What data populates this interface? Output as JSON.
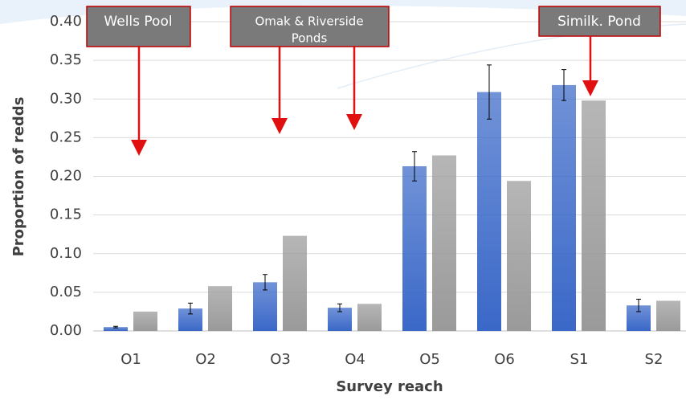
{
  "chart_data": {
    "type": "bar",
    "x_label": "Survey reach",
    "y_label": "Proportion of redds",
    "annotations": [
      "Wells Pool",
      "Omak & Riverside",
      "Ponds",
      "Similk. Pond"
    ],
    "categories": [
      "O1",
      "O2",
      "O3",
      "O4",
      "O5",
      "O6",
      "S1",
      "S2"
    ],
    "series": [
      {
        "color": "#3a68c8",
        "values": [
          0.005,
          0.029,
          0.063,
          0.03,
          0.213,
          0.309,
          0.318,
          0.033
        ],
        "errors": [
          0.001,
          0.007,
          0.01,
          0.005,
          0.019,
          0.035,
          0.02,
          0.008
        ]
      },
      {
        "color": "#9a9a9a",
        "values": [
          0.025,
          0.058,
          0.123,
          0.035,
          0.227,
          0.194,
          0.298,
          0.039
        ]
      }
    ],
    "ylim": [
      0,
      0.4
    ],
    "yticks": [
      {
        "value": 0,
        "label": "0.00"
      },
      {
        "value": 0.05,
        "label": "0.05"
      },
      {
        "value": 0.1,
        "label": "0.10"
      },
      {
        "value": 0.15,
        "label": "0.15"
      },
      {
        "value": 0.2,
        "label": "0.20"
      },
      {
        "value": 0.25,
        "label": "0.25"
      },
      {
        "value": 0.3,
        "label": "0.30"
      },
      {
        "value": 0.35,
        "label": "0.35"
      },
      {
        "value": 0.4,
        "label": "0.40"
      }
    ],
    "grid": true
  }
}
